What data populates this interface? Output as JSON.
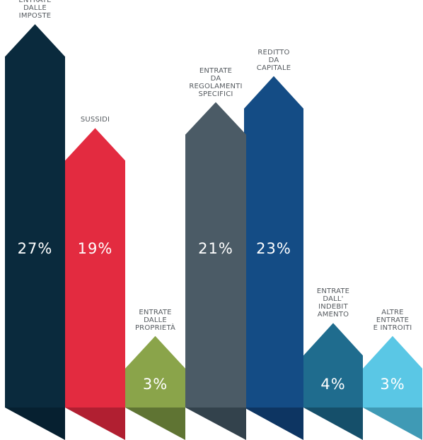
{
  "chart_data": {
    "type": "bar",
    "categories": [
      "ENTRATE\nDALLE\nIMPOSTE",
      "SUSSIDI",
      "ENTRATE\nDALLE\nPROPRIETÀ",
      "ENTRATE\nDA\nREGOLAMENTI\nSPECIFICI",
      "REDITTO\nDA\nCAPITALE",
      "ENTRATE\nDALL'\nINDEBIT\nAMENTO",
      "ALTRE\nENTRATE\nE INTROITI"
    ],
    "values": [
      27,
      19,
      3,
      21,
      23,
      4,
      3
    ],
    "value_labels": [
      "27%",
      "19%",
      "3%",
      "21%",
      "23%",
      "4%",
      "3%"
    ],
    "colors": [
      "#0a2a3d",
      "#e32b40",
      "#8aa44a",
      "#4b5b66",
      "#144c85",
      "#1f6c8e",
      "#5ac7e5"
    ],
    "shade_colors": [
      "#062030",
      "#b11f31",
      "#5f7433",
      "#33424c",
      "#0d3562",
      "#154f6a",
      "#3f9ab5"
    ],
    "ylim": [
      0,
      30
    ]
  }
}
